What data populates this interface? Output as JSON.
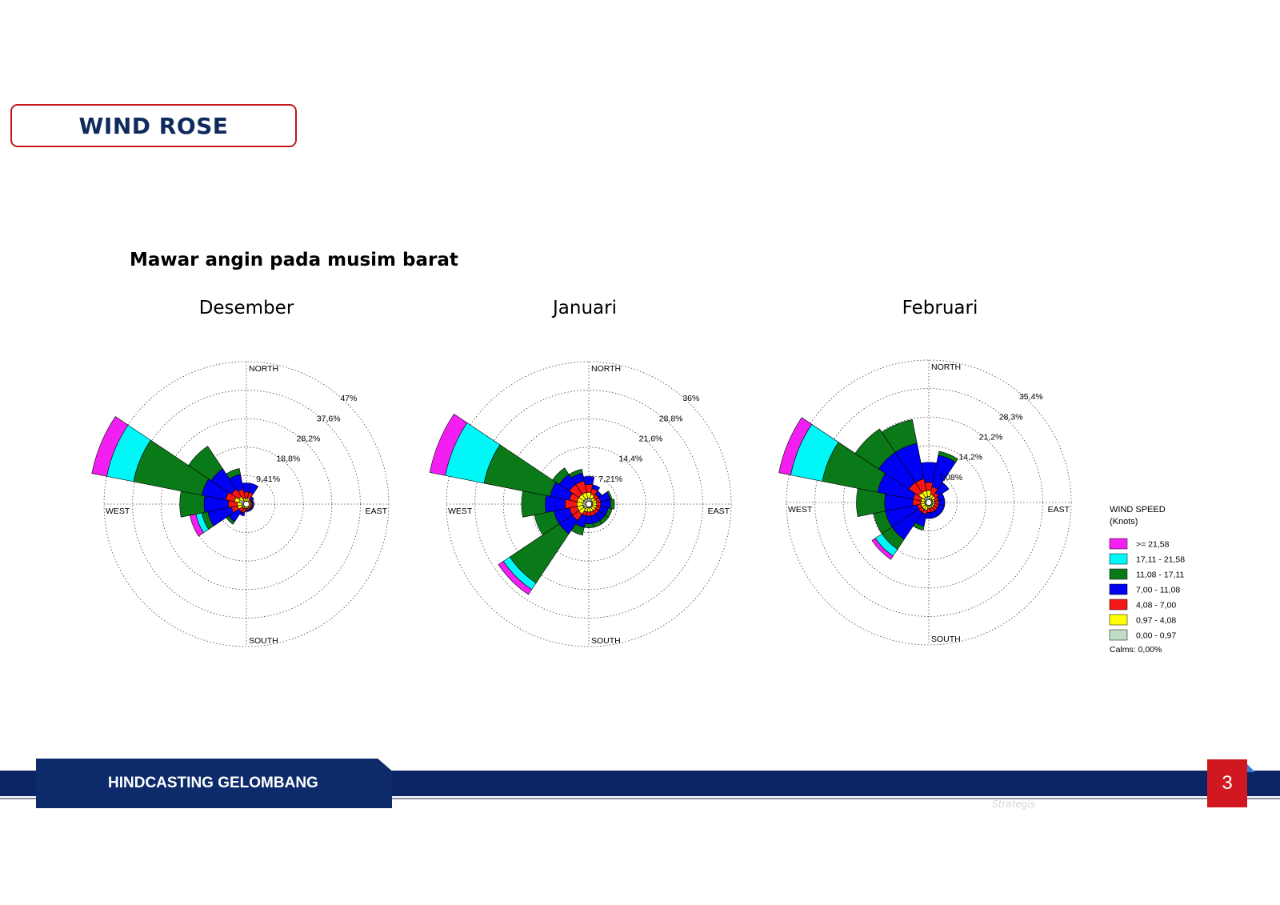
{
  "header": {
    "title": "WIND ROSE"
  },
  "subtitle": "Mawar angin pada musim barat",
  "colors": {
    "magenta": "#f31ff2",
    "cyan": "#00f7f7",
    "green": "#0a7a19",
    "blue": "#0000f5",
    "red": "#f51616",
    "yellow": "#ffff00",
    "calm": "#c0dec6"
  },
  "legend": {
    "title_line1": "WIND SPEED",
    "title_line2": "(Knots)",
    "items": [
      {
        "label": ">= 21,58",
        "color": "#f31ff2"
      },
      {
        "label": "17,11 - 21,58",
        "color": "#00f7f7"
      },
      {
        "label": "11,08 - 17,11",
        "color": "#0a7a19"
      },
      {
        "label": "7,00 - 11,08",
        "color": "#0000f5"
      },
      {
        "label": "4,08 - 7,00",
        "color": "#f51616"
      },
      {
        "label": "0,97 - 4,08",
        "color": "#ffff00"
      },
      {
        "label": "0,00 - 0,97",
        "color": "#c0dec6"
      }
    ],
    "calms": "Calms: 0,00%"
  },
  "footer": {
    "label": "HINDCASTING GELOMBANG",
    "page": "3",
    "faint_text": "Strategis"
  },
  "chart_data": [
    {
      "type": "windrose",
      "title": "Desember",
      "directions": [
        "NORTH",
        "EAST",
        "SOUTH",
        "WEST"
      ],
      "ring_labels": [
        "9,41%",
        "18,8%",
        "28,2%",
        "37,6%",
        "47%"
      ],
      "rmax": 47,
      "sectors": [
        {
          "dir": 292.5,
          "cum": [
            2.5,
            4,
            7,
            15,
            38,
            47,
            52
          ]
        },
        {
          "dir": 270,
          "cum": [
            1.5,
            3,
            6,
            14,
            22,
            22,
            22
          ]
        },
        {
          "dir": 315,
          "cum": [
            1.5,
            3,
            6,
            14,
            23,
            23,
            23
          ]
        },
        {
          "dir": 247.5,
          "cum": [
            1.5,
            3,
            5,
            13,
            15,
            17,
            19
          ]
        },
        {
          "dir": 337.5,
          "cum": [
            1,
            2,
            5,
            10,
            12,
            12,
            12
          ]
        },
        {
          "dir": 0,
          "cum": [
            1,
            2,
            4,
            7,
            7,
            7,
            7
          ]
        },
        {
          "dir": 22.5,
          "cum": [
            1,
            2,
            4,
            7,
            7,
            7,
            7
          ]
        },
        {
          "dir": 45,
          "cum": [
            1,
            1.5,
            2,
            3,
            3,
            3,
            3
          ]
        },
        {
          "dir": 67.5,
          "cum": [
            1,
            1.5,
            2,
            2.5,
            2.5,
            2.5,
            2.5
          ]
        },
        {
          "dir": 90,
          "cum": [
            1,
            1.5,
            2,
            2.5,
            2.5,
            2.5,
            2.5
          ]
        },
        {
          "dir": 112.5,
          "cum": [
            1,
            1.5,
            2,
            2.5,
            2.5,
            2.5,
            2.5
          ]
        },
        {
          "dir": 135,
          "cum": [
            1,
            1.5,
            2,
            2.5,
            2.5,
            2.5,
            2.5
          ]
        },
        {
          "dir": 157.5,
          "cum": [
            1,
            1.5,
            2,
            2.5,
            2.5,
            2.5,
            2.5
          ]
        },
        {
          "dir": 180,
          "cum": [
            1,
            1.5,
            2,
            2.5,
            2.5,
            2.5,
            2.5
          ]
        },
        {
          "dir": 202.5,
          "cum": [
            1,
            1.5,
            3,
            4,
            4,
            4,
            4
          ]
        },
        {
          "dir": 225,
          "cum": [
            1,
            1.5,
            3,
            7,
            8,
            8,
            8
          ]
        }
      ]
    },
    {
      "type": "windrose",
      "title": "Januari",
      "directions": [
        "NORTH",
        "EAST",
        "SOUTH",
        "WEST"
      ],
      "ring_labels": [
        "7,21%",
        "14,4%",
        "21,6%",
        "28,8%",
        "36%"
      ],
      "rmax": 36,
      "sectors": [
        {
          "dir": 292.5,
          "cum": [
            1.5,
            3,
            5,
            10,
            27,
            37,
            41
          ]
        },
        {
          "dir": 270,
          "cum": [
            1.5,
            3,
            6,
            11,
            17,
            17,
            17
          ]
        },
        {
          "dir": 315,
          "cum": [
            1.5,
            3,
            6,
            9,
            11,
            11,
            11
          ]
        },
        {
          "dir": 247.5,
          "cum": [
            1.5,
            3,
            5,
            9,
            14,
            14,
            14
          ]
        },
        {
          "dir": 225,
          "cum": [
            1.5,
            3,
            5,
            9,
            24,
            26,
            27.5
          ]
        },
        {
          "dir": 337.5,
          "cum": [
            1.5,
            3,
            6,
            8,
            9,
            9,
            9
          ]
        },
        {
          "dir": 0,
          "cum": [
            1.5,
            3,
            5,
            7,
            7,
            7,
            7
          ]
        },
        {
          "dir": 22.5,
          "cum": [
            1.5,
            2.5,
            4,
            5,
            5,
            5,
            5
          ]
        },
        {
          "dir": 45,
          "cum": [
            1,
            2,
            3,
            4,
            4,
            4,
            4
          ]
        },
        {
          "dir": 67.5,
          "cum": [
            1,
            2,
            3,
            5.5,
            6,
            6,
            6
          ]
        },
        {
          "dir": 90,
          "cum": [
            1,
            2,
            3,
            5.5,
            6.5,
            6.5,
            6.5
          ]
        },
        {
          "dir": 112.5,
          "cum": [
            1,
            2,
            3,
            5,
            6,
            6,
            6
          ]
        },
        {
          "dir": 135,
          "cum": [
            1,
            2,
            3,
            5,
            6,
            6,
            6
          ]
        },
        {
          "dir": 157.5,
          "cum": [
            1,
            2,
            3,
            5,
            6,
            6,
            6
          ]
        },
        {
          "dir": 180,
          "cum": [
            1,
            2,
            3,
            5,
            6,
            6,
            6
          ]
        },
        {
          "dir": 202.5,
          "cum": [
            1,
            2,
            3,
            6,
            8,
            8,
            8
          ]
        }
      ]
    },
    {
      "type": "windrose",
      "title": "Februari",
      "directions": [
        "NORTH",
        "EAST",
        "SOUTH",
        "WEST"
      ],
      "ring_labels": [
        "7,08%",
        "14,2%",
        "21,2%",
        "28,3%",
        "35,4%"
      ],
      "rmax": 35.4,
      "sectors": [
        {
          "dir": 292.5,
          "cum": [
            1,
            2,
            4,
            13,
            27,
            35,
            38
          ]
        },
        {
          "dir": 270,
          "cum": [
            1,
            2,
            4,
            11,
            18,
            18,
            18
          ]
        },
        {
          "dir": 315,
          "cum": [
            1.5,
            3,
            6,
            15,
            22,
            22,
            22
          ]
        },
        {
          "dir": 337.5,
          "cum": [
            1.5,
            3,
            6,
            15,
            21,
            21,
            21
          ]
        },
        {
          "dir": 0,
          "cum": [
            1.5,
            3,
            5,
            10,
            10,
            10,
            10
          ]
        },
        {
          "dir": 22.5,
          "cum": [
            1,
            2,
            4,
            12,
            13,
            13,
            13
          ]
        },
        {
          "dir": 45,
          "cum": [
            1,
            2,
            3,
            6,
            6,
            6,
            6
          ]
        },
        {
          "dir": 67.5,
          "cum": [
            1,
            1.5,
            2.5,
            4,
            4,
            4,
            4
          ]
        },
        {
          "dir": 90,
          "cum": [
            1,
            1.5,
            2.5,
            4,
            4,
            4,
            4
          ]
        },
        {
          "dir": 112.5,
          "cum": [
            1,
            1.5,
            2.5,
            4,
            4,
            4,
            4
          ]
        },
        {
          "dir": 135,
          "cum": [
            1,
            1.5,
            2.5,
            4,
            4,
            4,
            4
          ]
        },
        {
          "dir": 157.5,
          "cum": [
            1,
            1.5,
            2.5,
            4,
            4,
            4,
            4
          ]
        },
        {
          "dir": 180,
          "cum": [
            1,
            1.5,
            2.5,
            4,
            4,
            4,
            4
          ]
        },
        {
          "dir": 202.5,
          "cum": [
            1,
            2,
            3,
            6,
            7,
            7,
            7
          ]
        },
        {
          "dir": 225,
          "cum": [
            1,
            2,
            3,
            11,
            14,
            16,
            17
          ]
        },
        {
          "dir": 247.5,
          "cum": [
            1,
            2,
            3,
            11,
            14,
            14,
            14
          ]
        }
      ]
    }
  ]
}
